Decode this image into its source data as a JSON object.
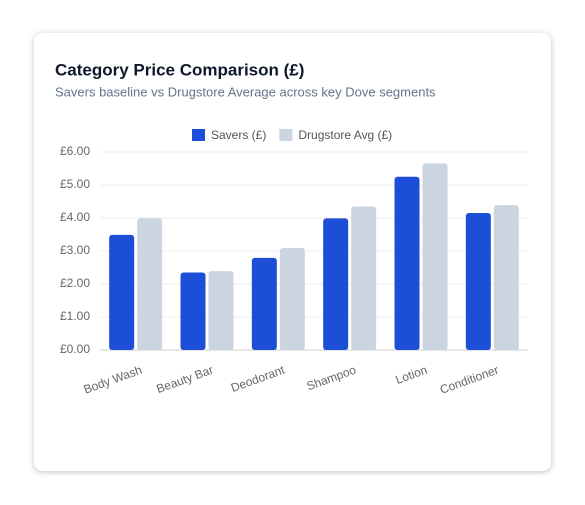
{
  "chart_data": {
    "type": "bar",
    "title": "Category Price Comparison (£)",
    "subtitle": "Savers baseline vs Drugstore Average across key Dove segments",
    "categories": [
      "Body Wash",
      "Beauty Bar",
      "Deodorant",
      "Shampoo",
      "Lotion",
      "Conditioner"
    ],
    "series": [
      {
        "name": "Savers (£)",
        "color": "#1d4ed8",
        "values": [
          3.49,
          2.35,
          2.79,
          3.99,
          5.25,
          4.15
        ]
      },
      {
        "name": "Drugstore Avg (£)",
        "color": "#cbd5e1",
        "values": [
          3.99,
          2.39,
          3.09,
          4.35,
          5.65,
          4.39
        ]
      }
    ],
    "ylim": [
      0,
      6
    ],
    "yticks": [
      {
        "value": 0,
        "label": "£0.00"
      },
      {
        "value": 1,
        "label": "£1.00"
      },
      {
        "value": 2,
        "label": "£2.00"
      },
      {
        "value": 3,
        "label": "£3.00"
      },
      {
        "value": 4,
        "label": "£4.00"
      },
      {
        "value": 5,
        "label": "£5.00"
      },
      {
        "value": 6,
        "label": "£6.00"
      }
    ],
    "grid": true,
    "legend": "top"
  }
}
